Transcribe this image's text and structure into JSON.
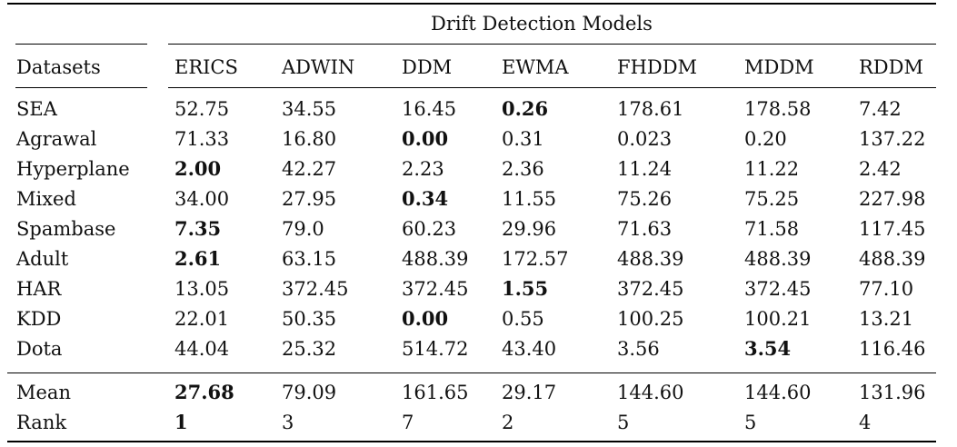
{
  "table": {
    "group_header": "Drift Detection Models",
    "columns": [
      "Datasets",
      "ERICS",
      "ADWIN",
      "DDM",
      "EWMA",
      "FHDDM",
      "MDDM",
      "RDDM"
    ],
    "rows": [
      {
        "dataset": "SEA",
        "values": [
          "52.75",
          "34.55",
          "16.45",
          "0.26",
          "178.61",
          "178.58",
          "7.42"
        ],
        "bold": [
          false,
          false,
          false,
          true,
          false,
          false,
          false
        ]
      },
      {
        "dataset": "Agrawal",
        "values": [
          "71.33",
          "16.80",
          "0.00",
          "0.31",
          "0.023",
          "0.20",
          "137.22"
        ],
        "bold": [
          false,
          false,
          true,
          false,
          false,
          false,
          false
        ]
      },
      {
        "dataset": "Hyperplane",
        "values": [
          "2.00",
          "42.27",
          "2.23",
          "2.36",
          "11.24",
          "11.22",
          "2.42"
        ],
        "bold": [
          true,
          false,
          false,
          false,
          false,
          false,
          false
        ]
      },
      {
        "dataset": "Mixed",
        "values": [
          "34.00",
          "27.95",
          "0.34",
          "11.55",
          "75.26",
          "75.25",
          "227.98"
        ],
        "bold": [
          false,
          false,
          true,
          false,
          false,
          false,
          false
        ]
      },
      {
        "dataset": "Spambase",
        "values": [
          "7.35",
          "79.0",
          "60.23",
          "29.96",
          "71.63",
          "71.58",
          "117.45"
        ],
        "bold": [
          true,
          false,
          false,
          false,
          false,
          false,
          false
        ]
      },
      {
        "dataset": "Adult",
        "values": [
          "2.61",
          "63.15",
          "488.39",
          "172.57",
          "488.39",
          "488.39",
          "488.39"
        ],
        "bold": [
          true,
          false,
          false,
          false,
          false,
          false,
          false
        ]
      },
      {
        "dataset": "HAR",
        "values": [
          "13.05",
          "372.45",
          "372.45",
          "1.55",
          "372.45",
          "372.45",
          "77.10"
        ],
        "bold": [
          false,
          false,
          false,
          true,
          false,
          false,
          false
        ]
      },
      {
        "dataset": "KDD",
        "values": [
          "22.01",
          "50.35",
          "0.00",
          "0.55",
          "100.25",
          "100.21",
          "13.21"
        ],
        "bold": [
          false,
          false,
          true,
          false,
          false,
          false,
          false
        ]
      },
      {
        "dataset": "Dota",
        "values": [
          "44.04",
          "25.32",
          "514.72",
          "43.40",
          "3.56",
          "3.54",
          "116.46"
        ],
        "bold": [
          false,
          false,
          false,
          false,
          false,
          true,
          false
        ]
      }
    ],
    "summary_rows": [
      {
        "dataset": "Mean",
        "values": [
          "27.68",
          "79.09",
          "161.65",
          "29.17",
          "144.60",
          "144.60",
          "131.96"
        ],
        "bold": [
          true,
          false,
          false,
          false,
          false,
          false,
          false
        ]
      },
      {
        "dataset": "Rank",
        "values": [
          "1",
          "3",
          "7",
          "2",
          "5",
          "5",
          "4"
        ],
        "bold": [
          true,
          false,
          false,
          false,
          false,
          false,
          false
        ]
      }
    ]
  }
}
